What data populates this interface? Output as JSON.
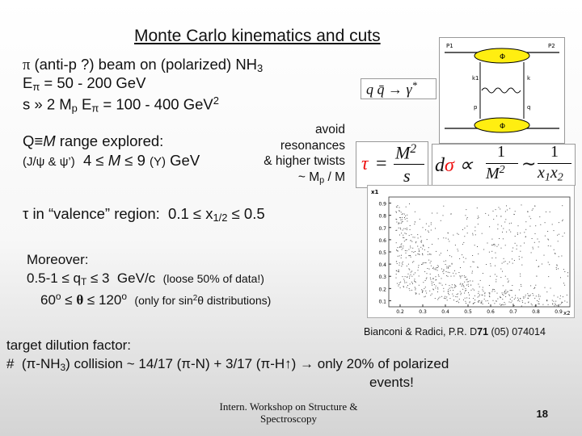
{
  "title": "Monte Carlo kinematics and cuts",
  "lines": {
    "beam": "π (anti-p ?) beam on (polarized) NH3",
    "energy": "Eπ = 50 - 200 GeV",
    "s": "s » 2 Mp Eπ = 100 - 400 GeV2",
    "q_range": "Q≡M range explored:",
    "mass_cuts": "(J/ψ & ψ’) 4 ≤ M ≤ 9 (Υ) GeV",
    "avoid": [
      "avoid",
      "resonances",
      "& higher twists",
      "~ Mp / M"
    ],
    "tau": "τ in “valence” region: 0.1 ≤ x1/2 ≤ 0.5",
    "moreover": "Moreover:",
    "qt_cut": "0.5-1 ≤ qT ≤ 3 GeV/c",
    "qt_note": "(loose 50% of data!)",
    "theta_cut": "60o ≤ θ ≤ 120o",
    "theta_note": "(only for sin2θ distributions)",
    "citation": "Bianconi & Radici, P.R. D71 (05) 074014",
    "dilution_title": "target dilution factor:",
    "dilution": "# (π-NH3) collision ~ 14/17 (π-N) + 3/17 (π-H↑) → only 20% of polarized",
    "dilution_end": "events!"
  },
  "formulas": {
    "qq": "q q̄ → γ*",
    "tau_def": "τ = M² / s",
    "dsigma": "dσ ∝ 1/M² ∼ 1/(x1 x2)"
  },
  "diagram": {
    "labels": [
      "P1",
      "P2",
      "k1",
      "k",
      "p",
      "q",
      "Φ"
    ]
  },
  "scatter": {
    "y_axis_label": "x1",
    "x_axis_label": "x2",
    "y_ticks": [
      "0.1",
      "0.2",
      "0.3",
      "0.4",
      "0.5",
      "0.6",
      "0.7",
      "0.8",
      "0.9"
    ],
    "x_ticks": [
      "0.2",
      "0.3",
      "0.4",
      "0.5",
      "0.6",
      "0.7",
      "0.8",
      "0.9"
    ]
  },
  "footer": {
    "workshop": [
      "Intern. Workshop on Structure &",
      "Spectroscopy"
    ],
    "page": "18"
  },
  "colors": {
    "sigma": "#e11",
    "scatter_dots": "#555555",
    "blob": "#ffee11"
  }
}
